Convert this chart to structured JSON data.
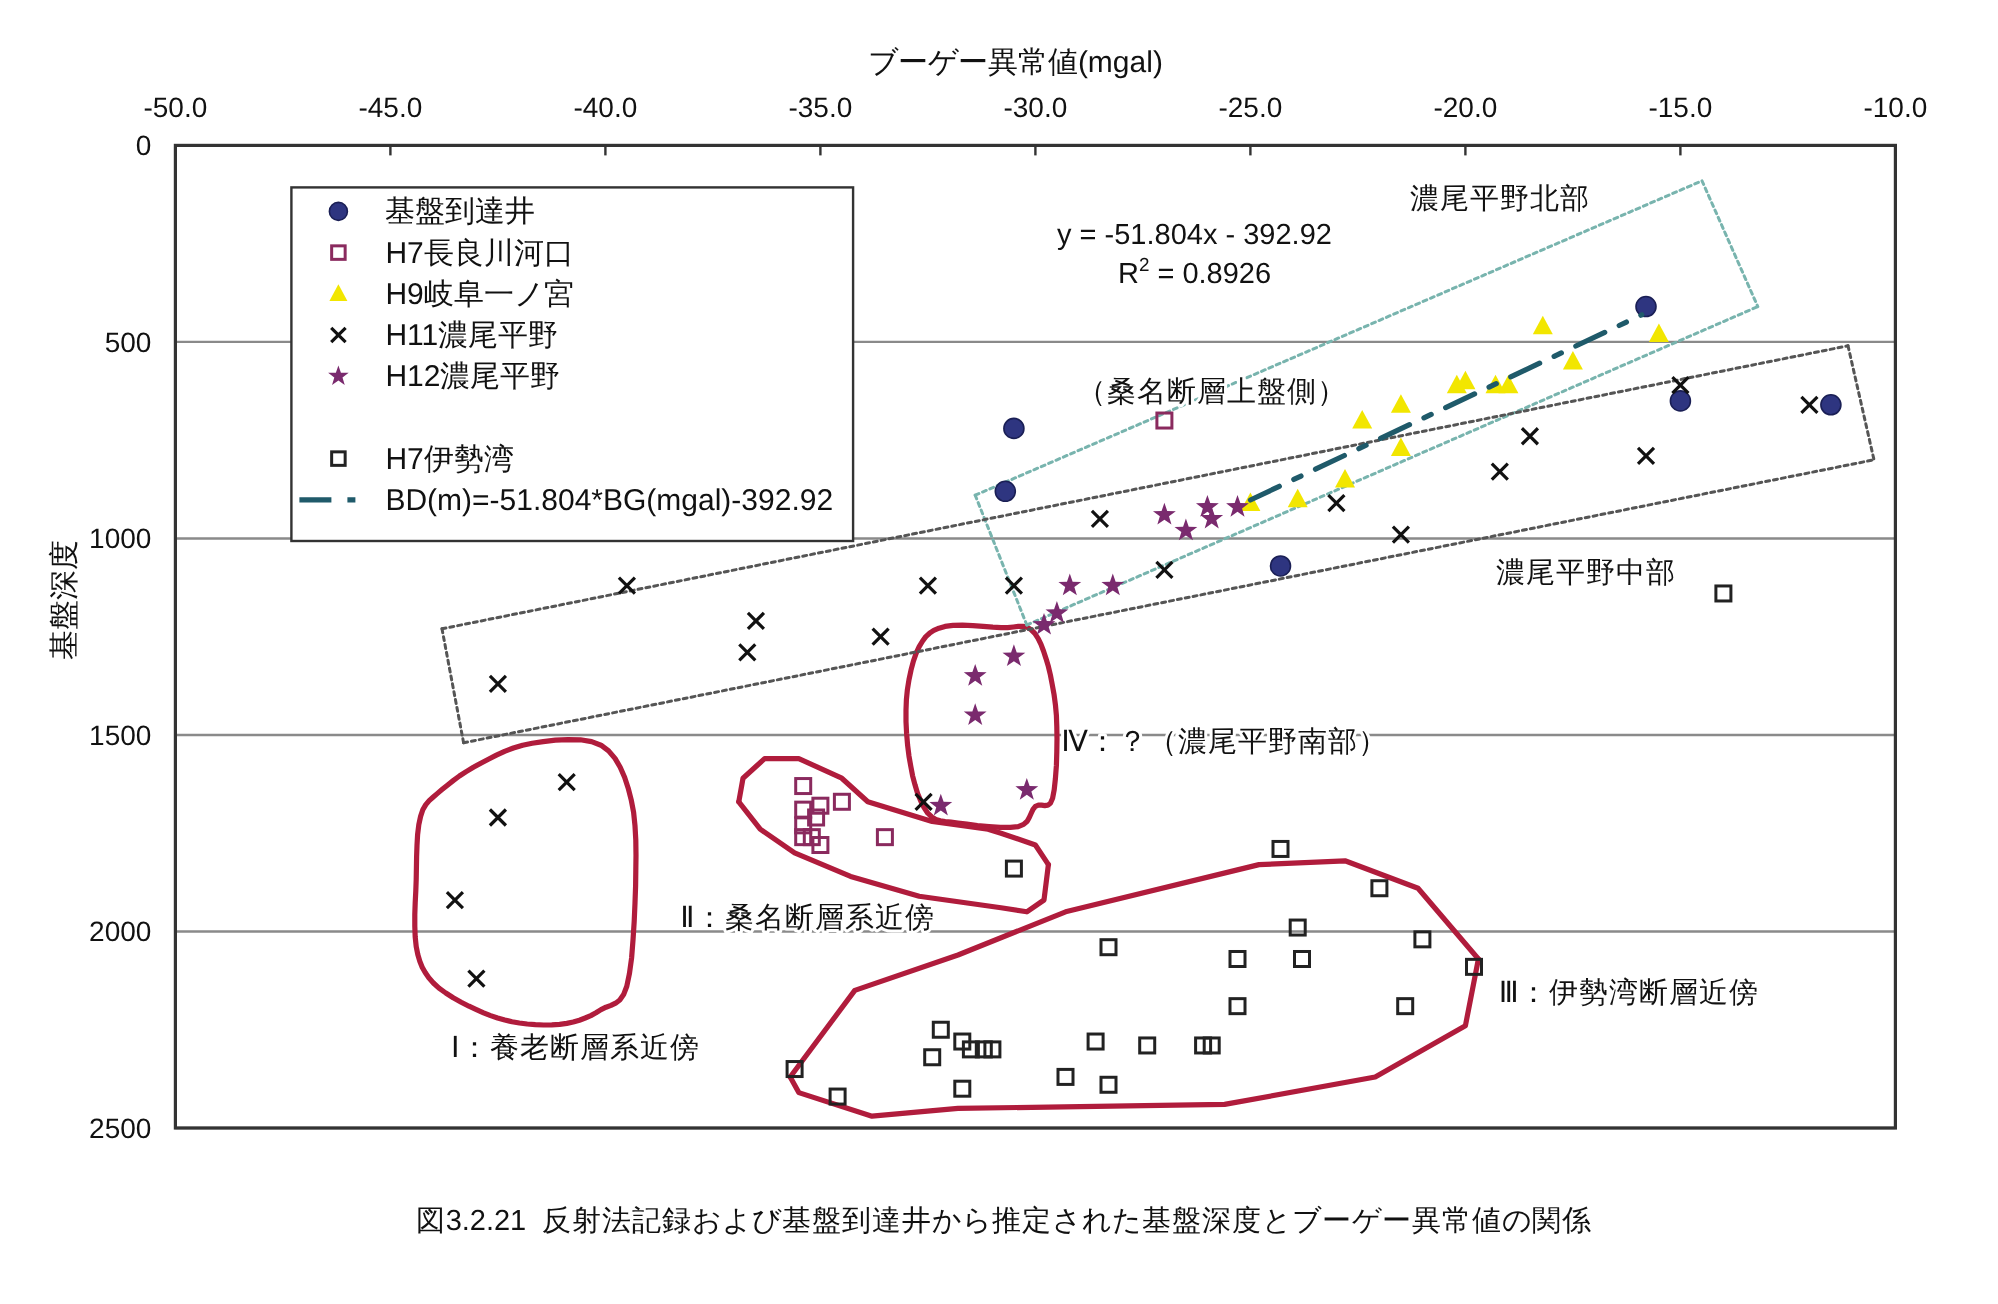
{
  "chart_data": {
    "type": "scatter",
    "title": "図3.2.21  反射法記録および基盤到達井から推定された基盤深度とブーゲー異常値の関係",
    "xlabel": "ブーゲー異常値(mgal)",
    "ylabel": "基盤深度",
    "xlim": [
      -50,
      -10
    ],
    "xticks": [
      {
        "value": -50,
        "label": "-50.0"
      },
      {
        "value": -45,
        "label": "-45.0"
      },
      {
        "value": -40,
        "label": "-40.0"
      },
      {
        "value": -35,
        "label": "-35.0"
      },
      {
        "value": -30,
        "label": "-30.0"
      },
      {
        "value": -25,
        "label": "-25.0"
      },
      {
        "value": -20,
        "label": "-20.0"
      },
      {
        "value": -15,
        "label": "-15.0"
      },
      {
        "value": -10,
        "label": "-10.0"
      }
    ],
    "ylim": [
      2500,
      0
    ],
    "yticks": [
      0,
      500,
      1000,
      1500,
      2000,
      2500
    ],
    "grid": "y",
    "legend": "top left",
    "series": [
      {
        "type": "line",
        "color": "#78b4ae",
        "line_style": "dotted",
        "marker": "none",
        "x": [
          -31.4,
          -14.5
        ],
        "values": [
          890,
          90
        ]
      },
      {
        "type": "line",
        "color": "#78b4ae",
        "line_style": "dotted",
        "marker": "none",
        "x": [
          -14.5,
          -13.2
        ],
        "values": [
          90,
          410
        ]
      },
      {
        "type": "line",
        "color": "#78b4ae",
        "line_style": "dotted",
        "marker": "none",
        "x": [
          -30.2,
          -13.2
        ],
        "values": [
          1220,
          410
        ]
      },
      {
        "type": "line",
        "color": "#78b4ae",
        "line_style": "dotted",
        "marker": "none",
        "x": [
          -31.4,
          -30.2
        ],
        "values": [
          890,
          1220
        ]
      },
      {
        "type": "line",
        "color": "#555555",
        "line_style": "dotted",
        "marker": "none",
        "x": [
          -43.8,
          -11.1
        ],
        "values": [
          1230,
          510
        ]
      },
      {
        "type": "line",
        "color": "#555555",
        "line_style": "dotted",
        "marker": "none",
        "x": [
          -11.1,
          -10.5
        ],
        "values": [
          510,
          800
        ]
      },
      {
        "type": "line",
        "color": "#555555",
        "line_style": "dotted",
        "marker": "none",
        "x": [
          -43.3,
          -10.5
        ],
        "values": [
          1520,
          800
        ]
      },
      {
        "type": "line",
        "color": "#555555",
        "line_style": "dotted",
        "marker": "none",
        "x": [
          -43.8,
          -43.3
        ],
        "values": [
          1230,
          1520
        ]
      },
      {
        "type": "line",
        "color": "#b01c3c",
        "line_style": "solid",
        "marker": "none",
        "x": [
          -36.9,
          -36.8,
          -36.3,
          -35.5,
          -34.5,
          -33.9,
          -32.4,
          -31.1,
          -30.8,
          -30.0,
          -29.7
        ],
        "values": [
          1670,
          1610,
          1560,
          1560,
          1610,
          1670,
          1720,
          1740,
          1750,
          1780,
          1830
        ]
      },
      {
        "type": "line",
        "color": "#b01c3c",
        "line_style": "solid",
        "marker": "none",
        "x": [
          -36.9,
          -36.4,
          -35.6,
          -34.3,
          -32.7,
          -30.8,
          -30.2,
          -29.8,
          -29.7
        ],
        "values": [
          1670,
          1740,
          1800,
          1860,
          1910,
          1940,
          1950,
          1920,
          1830
        ]
      },
      {
        "type": "line",
        "color": "#b01c3c",
        "line_style": "solid",
        "marker": "none",
        "x": [
          -35.7,
          -34.2,
          -31.8,
          -29.3,
          -24.8,
          -22.8,
          -21.1,
          -19.7
        ],
        "values": [
          2370,
          2150,
          2060,
          1950,
          1830,
          1820,
          1890,
          2070
        ]
      },
      {
        "type": "line",
        "color": "#b01c3c",
        "line_style": "solid",
        "marker": "none",
        "x": [
          -35.7,
          -35.5,
          -33.8,
          -31.8,
          -25.6,
          -22.1,
          -20.0,
          -19.7
        ],
        "values": [
          2370,
          2410,
          2470,
          2450,
          2440,
          2370,
          2240,
          2070
        ]
      },
      {
        "name": "基盤到達井",
        "color": "#2e3580",
        "marker": "circle",
        "x": [
          -30.5,
          -30.7,
          -24.3,
          -15.8,
          -15.0,
          -11.5
        ],
        "values": [
          720,
          880,
          1070,
          410,
          650,
          660
        ]
      },
      {
        "name": "H7長良川河口",
        "color": "#8a2a5e",
        "marker": "square",
        "x": [
          -27.0,
          -35.4,
          -35.0,
          -34.5,
          -35.4,
          -35.1,
          -35.4,
          -35.4,
          -35.2,
          -35.0,
          -33.5
        ],
        "values": [
          700,
          1630,
          1680,
          1670,
          1690,
          1710,
          1730,
          1760,
          1760,
          1780,
          1760
        ]
      },
      {
        "name": "H9岐阜一ノ宮",
        "color": "#f2e600",
        "marker": "triangle",
        "x": [
          -25.0,
          -23.9,
          -22.8,
          -22.4,
          -21.5,
          -21.5,
          -20.2,
          -20.0,
          -19.3,
          -19.0,
          -18.2,
          -17.5,
          -15.5
        ],
        "values": [
          910,
          900,
          850,
          700,
          660,
          770,
          610,
          600,
          610,
          610,
          460,
          550,
          480
        ]
      },
      {
        "name": "H11濃尾平野",
        "color": "#111111",
        "marker": "cross",
        "x": [
          -39.5,
          -32.5,
          -30.5,
          -36.5,
          -36.7,
          -33.6,
          -42.5,
          -40.9,
          -42.5,
          -43.5,
          -43.0,
          -32.6,
          -28.5,
          -27.0,
          -23.0,
          -21.5,
          -19.2,
          -18.5,
          -15.8,
          -15.0,
          -12.0
        ],
        "values": [
          1120,
          1120,
          1120,
          1210,
          1290,
          1250,
          1370,
          1620,
          1710,
          1920,
          2120,
          1670,
          950,
          1080,
          910,
          990,
          830,
          740,
          790,
          610,
          660
        ]
      },
      {
        "name": "H12濃尾平野",
        "color": "#7a2a6e",
        "marker": "star",
        "x": [
          -27.0,
          -26.5,
          -26.0,
          -25.9,
          -25.3,
          -29.2,
          -28.2,
          -29.5,
          -29.8,
          -30.5,
          -31.4,
          -31.4,
          -30.2,
          -32.2
        ],
        "values": [
          940,
          980,
          920,
          950,
          920,
          1120,
          1120,
          1190,
          1220,
          1300,
          1350,
          1450,
          1640,
          1680
        ]
      },
      {
        "name": "H7伊勢湾",
        "color": "#222222",
        "marker": "square",
        "x": [
          -30.5,
          -35.6,
          -34.6,
          -32.2,
          -32.4,
          -31.7,
          -31.5,
          -31.2,
          -31.0,
          -31.7,
          -28.3,
          -28.6,
          -27.4,
          -29.3,
          -28.3,
          -26.1,
          -25.9,
          -25.3,
          -25.3,
          -23.8,
          -23.9,
          -24.3,
          -22.0,
          -21.0,
          -21.4,
          -19.8,
          -14.0
        ],
        "values": [
          1840,
          2350,
          2420,
          2250,
          2320,
          2280,
          2300,
          2300,
          2300,
          2400,
          2040,
          2280,
          2290,
          2370,
          2390,
          2290,
          2290,
          2190,
          2070,
          2070,
          1990,
          1790,
          1890,
          2020,
          2190,
          2090,
          1140
        ]
      },
      {
        "name": "BD(m)=-51.804*BG(mgal)-392.92",
        "type": "line",
        "color": "#1f5a6a",
        "line_style": "dashed",
        "marker": "none",
        "x": [
          -25.0,
          -15.9
        ],
        "values": [
          902,
          431
        ]
      }
    ],
    "annotations": [
      "y = -51.804x - 392.92",
      "R$^{2}$ = 0.8926",
      "濃尾平野北部",
      "（桑名断層上盤側）",
      "濃尾平野中部",
      "Ⅳ：？（濃尾平野南部）",
      "Ⅱ：桑名断層系近傍",
      "Ⅰ：養老断層系近傍",
      "Ⅲ：伊勢湾断層近傍"
    ]
  }
}
